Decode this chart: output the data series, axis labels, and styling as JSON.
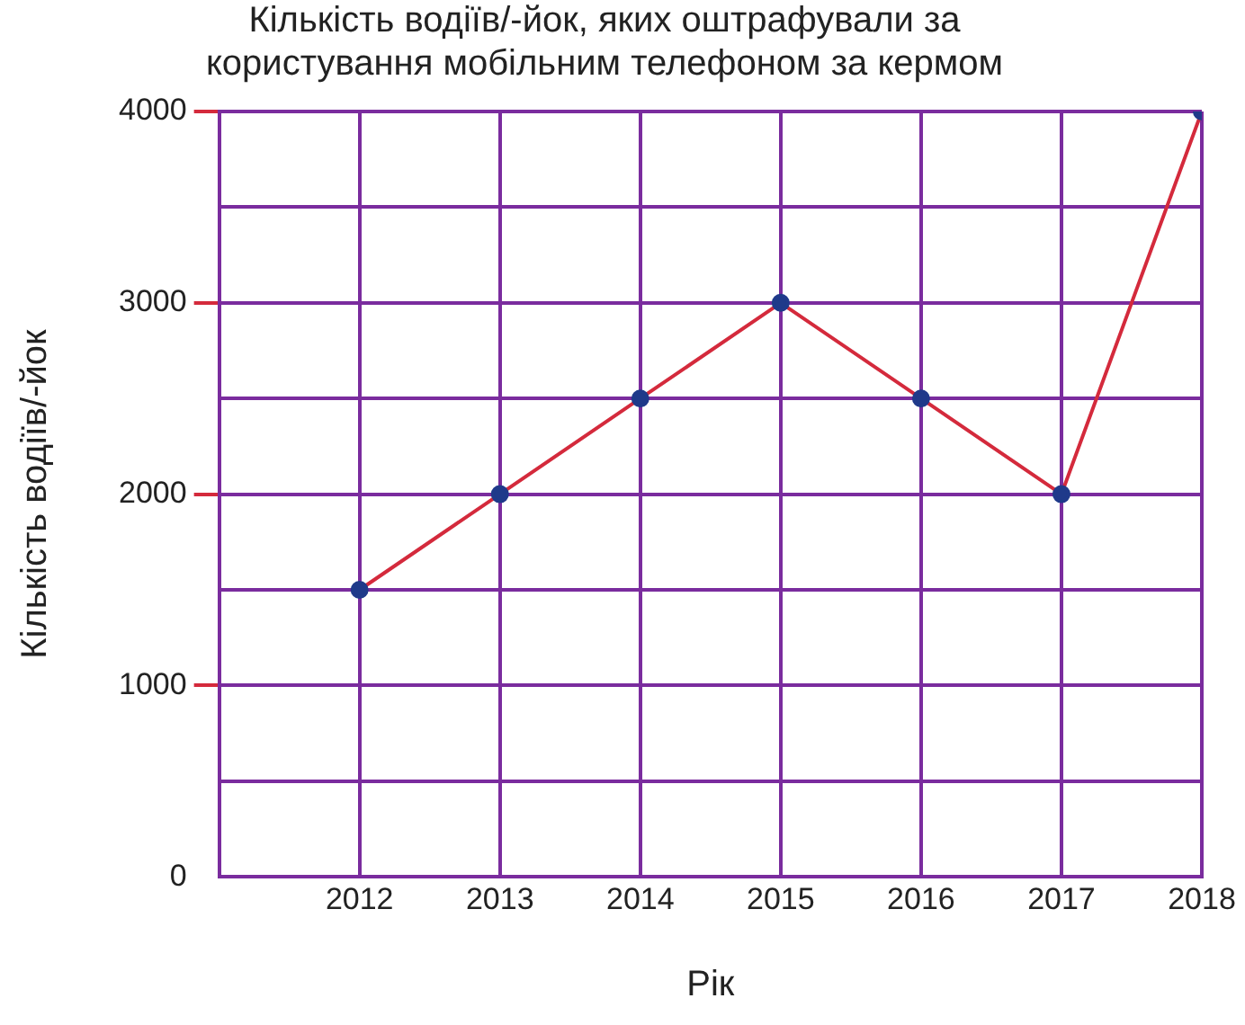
{
  "chart_data": {
    "type": "line",
    "title": [
      "Кількість водіїв/-йок, яких оштрафували за",
      "користування мобільним телефоном за кермом"
    ],
    "xlabel": "Рік",
    "ylabel": "Кількість водіїв/-йок",
    "x": [
      2012,
      2013,
      2014,
      2015,
      2016,
      2017,
      2018
    ],
    "series": [
      {
        "color": "#d42a3c",
        "values": [
          1500,
          2000,
          2500,
          3000,
          2500,
          2000,
          4000
        ]
      }
    ],
    "marker": "circle",
    "grid": true,
    "xlim": [
      2011,
      2018
    ],
    "xticks": [
      2012,
      2013,
      2014,
      2015,
      2016,
      2017,
      2018
    ],
    "ylim": [
      0,
      4000
    ],
    "yticks": [
      0,
      {
        "value": 500,
        "label": null
      },
      1000,
      {
        "value": 1500,
        "label": null
      },
      2000,
      {
        "value": 2500,
        "label": null
      },
      3000,
      {
        "value": 3500,
        "label": null
      },
      4000
    ],
    "legend": false
  }
}
